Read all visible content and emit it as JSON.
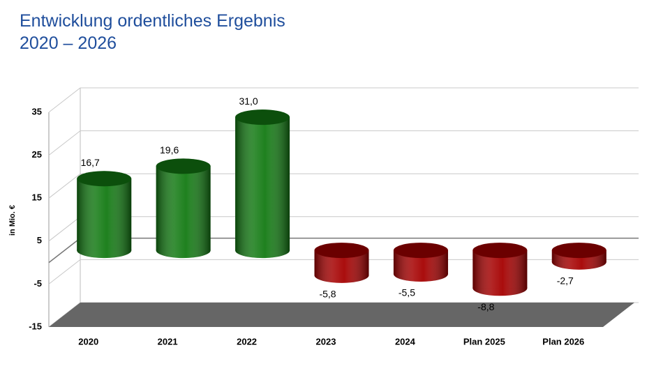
{
  "chart_data": {
    "type": "bar3d",
    "title": "Entwicklung ordentliches Ergebnis",
    "subtitle": "2020 – 2026",
    "y_label": "in Mio. €",
    "categories": [
      "2020",
      "2021",
      "2022",
      "2023",
      "2024",
      "Plan 2025",
      "Plan 2026"
    ],
    "values": [
      16.7,
      19.6,
      31.0,
      -5.8,
      -5.5,
      -8.8,
      -2.7
    ],
    "value_labels": [
      "16,7",
      "19,6",
      "31,0",
      "-5,8",
      "-5,5",
      "-8,8",
      "-2,7"
    ],
    "positive_color": "#137a13",
    "negative_color": "#a50000",
    "ylim": [
      -15,
      35
    ],
    "yticks": [
      -15,
      -5,
      5,
      15,
      25,
      35
    ],
    "grid": true
  }
}
